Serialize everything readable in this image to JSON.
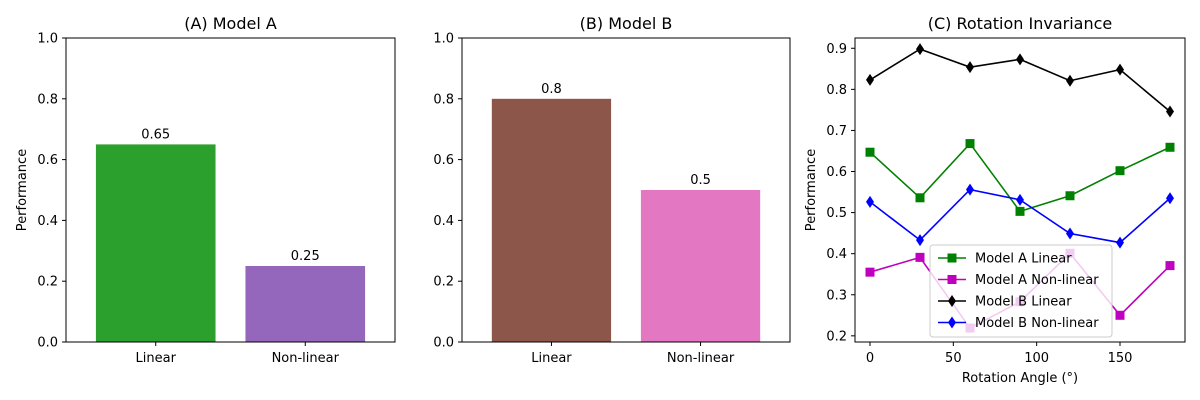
{
  "chart_data": [
    {
      "type": "bar",
      "title": "(A) Model A",
      "xlabel": "",
      "ylabel": "Performance",
      "categories": [
        "Linear",
        "Non-linear"
      ],
      "values": [
        0.65,
        0.25
      ],
      "data_labels": [
        "0.65",
        "0.25"
      ],
      "colors": [
        "#2ca02c",
        "#9467bd"
      ],
      "ylim": [
        0,
        1.0
      ],
      "yticks": [
        "0.0",
        "0.2",
        "0.4",
        "0.6",
        "0.8",
        "1.0"
      ]
    },
    {
      "type": "bar",
      "title": "(B) Model B",
      "xlabel": "",
      "ylabel": "",
      "categories": [
        "Linear",
        "Non-linear"
      ],
      "values": [
        0.8,
        0.5
      ],
      "data_labels": [
        "0.8",
        "0.5"
      ],
      "colors": [
        "#8c564b",
        "#e377c2"
      ],
      "ylim": [
        0,
        1.0
      ],
      "yticks": [
        "0.0",
        "0.2",
        "0.4",
        "0.6",
        "0.8",
        "1.0"
      ]
    },
    {
      "type": "line",
      "title": "(C) Rotation Invariance",
      "xlabel": "Rotation Angle (°)",
      "ylabel": "Performance",
      "x": [
        0,
        30,
        60,
        90,
        120,
        150,
        180
      ],
      "xlim": [
        -9,
        189
      ],
      "ylim": [
        0.185,
        0.925
      ],
      "xticks": [
        "0",
        "50",
        "100",
        "150"
      ],
      "yticks": [
        "0.2",
        "0.3",
        "0.4",
        "0.5",
        "0.6",
        "0.7",
        "0.8",
        "0.9"
      ],
      "legend_position": "lower-center",
      "series": [
        {
          "name": "Model A Linear",
          "values": [
            0.647,
            0.536,
            0.668,
            0.503,
            0.541,
            0.602,
            0.659
          ],
          "color": "#008000",
          "marker": "square"
        },
        {
          "name": "Model A Non-linear",
          "values": [
            0.355,
            0.391,
            0.219,
            0.283,
            0.401,
            0.25,
            0.371
          ],
          "color": "#bf00bf",
          "marker": "square"
        },
        {
          "name": "Model B Linear",
          "values": [
            0.823,
            0.898,
            0.854,
            0.873,
            0.821,
            0.848,
            0.746
          ],
          "color": "#000000",
          "marker": "diamond"
        },
        {
          "name": "Model B Non-linear",
          "values": [
            0.526,
            0.433,
            0.556,
            0.531,
            0.449,
            0.427,
            0.535
          ],
          "color": "#0000ff",
          "marker": "diamond"
        }
      ]
    }
  ]
}
